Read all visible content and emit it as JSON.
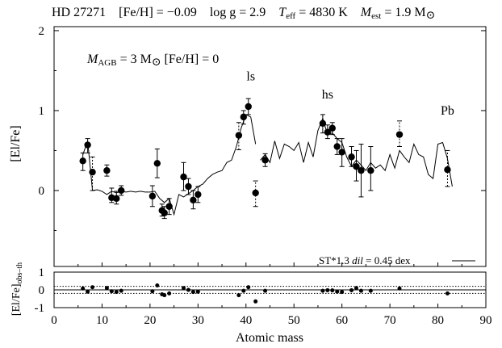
{
  "header": {
    "star": "HD 27271",
    "feh": "[Fe/H] = −0.09",
    "logg": "log g = 2.9",
    "teff": "T",
    "teff_sub": "eff",
    "teff_val": " = 4830 K",
    "mest": "M",
    "mest_sub": "est",
    "mest_val": " = 1.9 M",
    "sun": "⊙"
  },
  "model": {
    "m": "M",
    "m_sub": "AGB",
    "m_val": " = 3 M",
    "sun": "⊙",
    "feh": " [Fe/H] = 0"
  },
  "peak_labels": [
    {
      "text": "ls",
      "x": 41,
      "y": 1.38
    },
    {
      "text": "hs",
      "x": 57,
      "y": 1.15
    },
    {
      "text": "Pb",
      "x": 82,
      "y": 0.95
    }
  ],
  "dilution_legend": {
    "st": "ST*1.3 ",
    "dil": "dil",
    "val": " = 0.45 dex"
  },
  "chart_data": [
    {
      "type": "scatter",
      "panel": "top",
      "ylabel": "[El/Fe]",
      "xlim": [
        0,
        90
      ],
      "ylim": [
        -0.95,
        2.05
      ],
      "yticks": [
        0,
        1,
        2
      ],
      "points": [
        {
          "x": 6,
          "y": 0.37,
          "lo": 0.25,
          "hi": 0.47,
          "dashed": false
        },
        {
          "x": 7,
          "y": 0.57,
          "lo": 0.47,
          "hi": 0.65,
          "dashed": false
        },
        {
          "x": 8,
          "y": 0.23,
          "lo": 0.0,
          "hi": 0.42,
          "dashed": true
        },
        {
          "x": 11,
          "y": 0.25,
          "lo": 0.18,
          "hi": 0.32,
          "dashed": false
        },
        {
          "x": 12,
          "y": -0.09,
          "lo": -0.15,
          "hi": 0.03,
          "dashed": false
        },
        {
          "x": 13,
          "y": -0.1,
          "lo": -0.17,
          "hi": -0.01,
          "dashed": false
        },
        {
          "x": 14,
          "y": 0.0,
          "lo": -0.06,
          "hi": 0.06,
          "dashed": false
        },
        {
          "x": 20.5,
          "y": -0.07,
          "lo": -0.2,
          "hi": 0.06,
          "dashed": false
        },
        {
          "x": 21.5,
          "y": 0.34,
          "lo": 0.16,
          "hi": 0.52,
          "dashed": false
        },
        {
          "x": 22.5,
          "y": -0.25,
          "lo": -0.32,
          "hi": -0.17,
          "dashed": false
        },
        {
          "x": 23,
          "y": -0.28,
          "lo": -0.35,
          "hi": -0.2,
          "dashed": false
        },
        {
          "x": 24,
          "y": -0.2,
          "lo": -0.3,
          "hi": -0.1,
          "dashed": false
        },
        {
          "x": 27,
          "y": 0.17,
          "lo": 0.0,
          "hi": 0.35,
          "dashed": false
        },
        {
          "x": 28,
          "y": 0.05,
          "lo": -0.05,
          "hi": 0.15,
          "dashed": false
        },
        {
          "x": 29,
          "y": -0.12,
          "lo": -0.23,
          "hi": 0.0,
          "dashed": false
        },
        {
          "x": 30,
          "y": -0.05,
          "lo": -0.15,
          "hi": 0.05,
          "dashed": false
        },
        {
          "x": 38.5,
          "y": 0.69,
          "lo": 0.51,
          "hi": 0.85,
          "dashed": true
        },
        {
          "x": 39.5,
          "y": 0.92,
          "lo": 0.83,
          "hi": 1.0,
          "dashed": false
        },
        {
          "x": 40.5,
          "y": 1.05,
          "lo": 0.95,
          "hi": 1.15,
          "dashed": false
        },
        {
          "x": 42,
          "y": -0.03,
          "lo": -0.2,
          "hi": 0.12,
          "dashed": true
        },
        {
          "x": 44,
          "y": 0.38,
          "lo": 0.3,
          "hi": 0.46,
          "dashed": false
        },
        {
          "x": 56,
          "y": 0.84,
          "lo": 0.72,
          "hi": 0.95,
          "dashed": false
        },
        {
          "x": 57,
          "y": 0.73,
          "lo": 0.65,
          "hi": 0.82,
          "dashed": false
        },
        {
          "x": 58,
          "y": 0.78,
          "lo": 0.7,
          "hi": 0.85,
          "dashed": false
        },
        {
          "x": 59,
          "y": 0.55,
          "lo": 0.45,
          "hi": 0.65,
          "dashed": false
        },
        {
          "x": 60,
          "y": 0.48,
          "lo": 0.3,
          "hi": 0.65,
          "dashed": false
        },
        {
          "x": 62,
          "y": 0.42,
          "lo": 0.3,
          "hi": 0.55,
          "dashed": false
        },
        {
          "x": 63,
          "y": 0.3,
          "lo": 0.12,
          "hi": 0.5,
          "dashed": false
        },
        {
          "x": 64,
          "y": 0.25,
          "lo": -0.08,
          "hi": 0.58,
          "dashed": false
        },
        {
          "x": 66,
          "y": 0.25,
          "lo": 0.0,
          "hi": 0.55,
          "dashed": false
        },
        {
          "x": 72,
          "y": 0.7,
          "lo": 0.55,
          "hi": 0.87,
          "dashed": true
        },
        {
          "x": 82,
          "y": 0.26,
          "lo": 0.05,
          "hi": 0.5,
          "dashed": true
        }
      ],
      "model_segments": [
        [
          [
            6,
            0.45
          ],
          [
            7,
            0.62
          ],
          [
            8,
            0.0
          ],
          [
            9,
            0.01
          ],
          [
            10,
            -0.01
          ],
          [
            11,
            -0.05
          ],
          [
            12,
            -0.01
          ],
          [
            13,
            -0.03
          ],
          [
            14,
            -0.01
          ],
          [
            15,
            -0.02
          ],
          [
            16,
            -0.01
          ],
          [
            17,
            -0.02
          ],
          [
            18,
            -0.01
          ],
          [
            19,
            -0.02
          ],
          [
            20,
            -0.02
          ],
          [
            21,
            -0.01
          ],
          [
            22,
            -0.1
          ],
          [
            23,
            -0.15
          ],
          [
            24,
            -0.1
          ],
          [
            25,
            -0.3
          ],
          [
            26,
            -0.05
          ],
          [
            27,
            -0.08
          ],
          [
            28,
            -0.04
          ],
          [
            29,
            0.0
          ],
          [
            30,
            0.05
          ],
          [
            31,
            0.08
          ],
          [
            32,
            0.15
          ],
          [
            33,
            0.2
          ],
          [
            34,
            0.23
          ],
          [
            35,
            0.25
          ],
          [
            36,
            0.35
          ],
          [
            37,
            0.38
          ],
          [
            38,
            0.55
          ],
          [
            39,
            0.78
          ],
          [
            40,
            0.95
          ],
          [
            41,
            0.92
          ],
          [
            42,
            0.58
          ]
        ],
        [
          [
            43,
            0.38
          ],
          [
            44,
            0.45
          ],
          [
            45,
            0.35
          ],
          [
            46,
            0.62
          ],
          [
            47,
            0.4
          ],
          [
            48,
            0.58
          ],
          [
            49,
            0.55
          ],
          [
            50,
            0.5
          ],
          [
            51,
            0.6
          ],
          [
            52,
            0.35
          ],
          [
            53,
            0.6
          ],
          [
            54,
            0.42
          ],
          [
            55,
            0.75
          ],
          [
            56,
            0.9
          ],
          [
            57,
            0.7
          ],
          [
            58,
            0.72
          ],
          [
            59,
            0.65
          ],
          [
            60,
            0.6
          ],
          [
            61,
            0.42
          ],
          [
            62,
            0.3
          ],
          [
            63,
            0.38
          ],
          [
            64,
            0.32
          ],
          [
            65,
            0.25
          ],
          [
            66,
            0.35
          ],
          [
            67,
            0.28
          ],
          [
            68,
            0.32
          ],
          [
            69,
            0.25
          ],
          [
            70,
            0.45
          ],
          [
            71,
            0.28
          ],
          [
            72,
            0.5
          ],
          [
            73,
            0.42
          ],
          [
            74,
            0.35
          ],
          [
            75,
            0.58
          ],
          [
            76,
            0.45
          ],
          [
            77,
            0.42
          ],
          [
            78,
            0.2
          ],
          [
            79,
            0.15
          ],
          [
            80,
            0.58
          ],
          [
            81,
            0.6
          ],
          [
            82,
            0.4
          ],
          [
            83,
            0.05
          ]
        ]
      ]
    },
    {
      "type": "scatter",
      "panel": "bottom",
      "xlabel": "Atomic mass",
      "ylabel": "[El/Fe]",
      "ylabel_sub": "obs–th",
      "xlim": [
        0,
        90
      ],
      "ylim": [
        -1,
        1
      ],
      "xticks": [
        0,
        10,
        20,
        30,
        40,
        50,
        60,
        70,
        80,
        90
      ],
      "yticks": [
        -1,
        0,
        1
      ],
      "reference_lines": [
        0,
        0.2,
        -0.2
      ],
      "points": [
        {
          "x": 6,
          "y": 0.08
        },
        {
          "x": 7,
          "y": -0.1
        },
        {
          "x": 8,
          "y": 0.15
        },
        {
          "x": 11,
          "y": 0.1
        },
        {
          "x": 12,
          "y": -0.08
        },
        {
          "x": 13,
          "y": -0.12
        },
        {
          "x": 14,
          "y": -0.05
        },
        {
          "x": 20.5,
          "y": -0.08
        },
        {
          "x": 21.5,
          "y": 0.25
        },
        {
          "x": 22.5,
          "y": -0.25
        },
        {
          "x": 23,
          "y": -0.3
        },
        {
          "x": 24,
          "y": -0.2
        },
        {
          "x": 27,
          "y": 0.1
        },
        {
          "x": 28,
          "y": 0.0
        },
        {
          "x": 29,
          "y": -0.12
        },
        {
          "x": 30,
          "y": -0.1
        },
        {
          "x": 38.5,
          "y": -0.3
        },
        {
          "x": 39.5,
          "y": -0.05
        },
        {
          "x": 40.5,
          "y": 0.15
        },
        {
          "x": 42,
          "y": -0.65
        },
        {
          "x": 44,
          "y": -0.05
        },
        {
          "x": 56,
          "y": -0.05
        },
        {
          "x": 57,
          "y": -0.02
        },
        {
          "x": 58,
          "y": -0.03
        },
        {
          "x": 59,
          "y": -0.1
        },
        {
          "x": 60,
          "y": -0.12
        },
        {
          "x": 62,
          "y": -0.02
        },
        {
          "x": 63,
          "y": 0.1
        },
        {
          "x": 64,
          "y": -0.05
        },
        {
          "x": 66,
          "y": -0.05
        },
        {
          "x": 72,
          "y": 0.08
        },
        {
          "x": 82,
          "y": -0.2
        }
      ]
    }
  ]
}
